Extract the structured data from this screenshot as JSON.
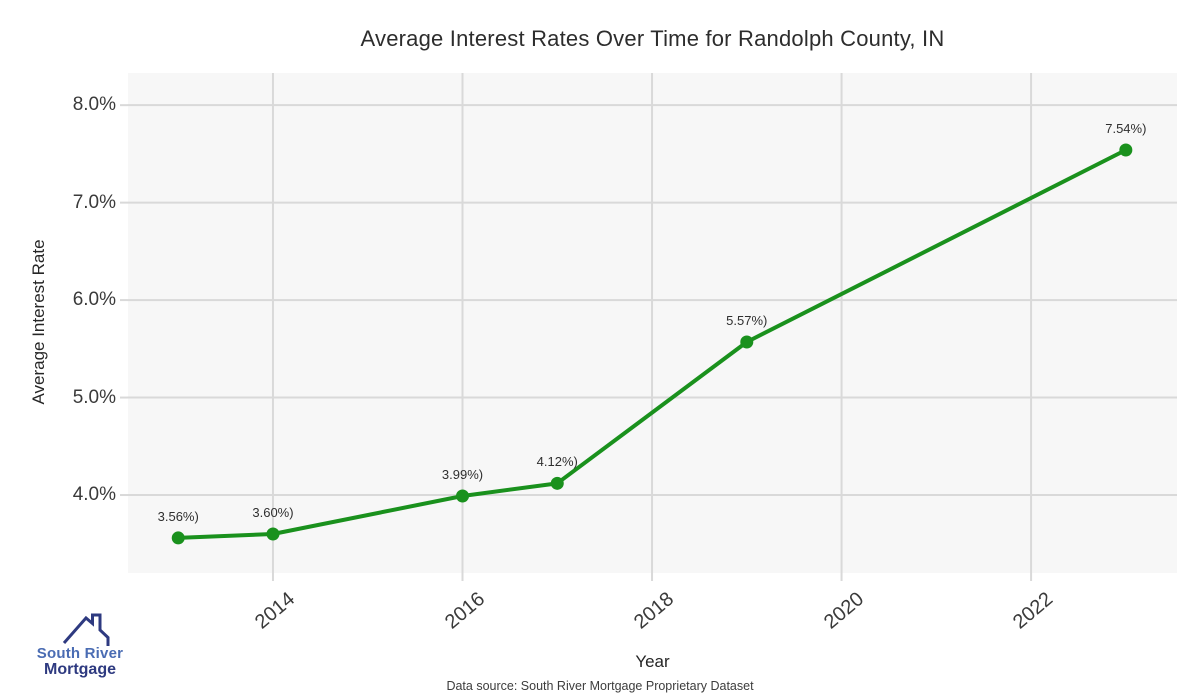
{
  "chart_data": {
    "type": "line",
    "title": "Average Interest Rates Over Time for Randolph County, IN",
    "xlabel": "Year",
    "ylabel": "Average Interest Rate",
    "x": [
      2013,
      2014,
      2016,
      2017,
      2019,
      2023
    ],
    "values": [
      3.56,
      3.6,
      3.99,
      4.12,
      5.57,
      7.54
    ],
    "point_labels": [
      "3.56%)",
      "3.60%)",
      "3.99%)",
      "4.12%)",
      "5.57%)",
      "7.54%)"
    ],
    "x_ticks": {
      "values": [
        2014,
        2016,
        2018,
        2020,
        2022
      ],
      "labels": [
        "2014",
        "2016",
        "2018",
        "2020",
        "2022"
      ]
    },
    "y_ticks": {
      "values": [
        4,
        5,
        6,
        7,
        8
      ],
      "labels": [
        "4.0%",
        "5.0%",
        "6.0%",
        "7.0%",
        "8.0%"
      ]
    },
    "xlim": [
      2012.47,
      2023.54
    ],
    "ylim": [
      3.2,
      8.33
    ],
    "grid": true,
    "legend": "none",
    "line_color": "#1a911d",
    "marker_color": "#1a911d"
  },
  "caption": "Data source: South River Mortgage Proprietary Dataset",
  "logo": {
    "line1": "South River",
    "line2": "Mortgage",
    "line1_color": "#4a6cb3",
    "line2_color": "#2e3a80",
    "roof_color": "#2e3a80"
  },
  "colors": {
    "figure_bg": "#ffffff",
    "plot_bg": "#f7f7f7",
    "grid": "#d9d9d9"
  }
}
